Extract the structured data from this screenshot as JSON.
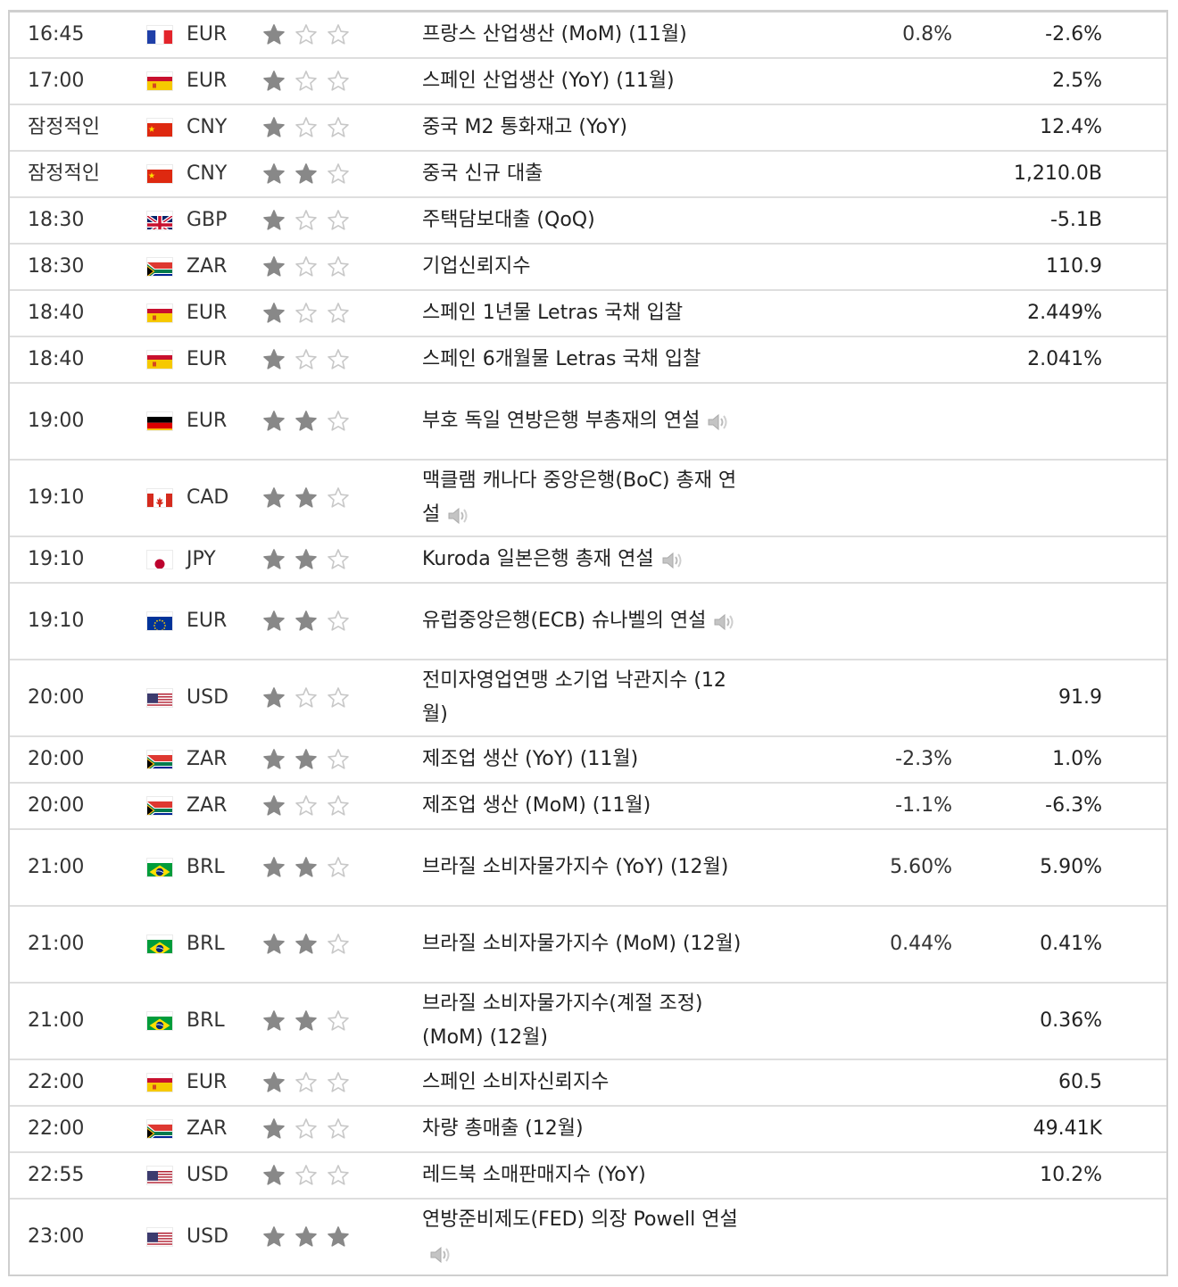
{
  "colors": {
    "star_filled": "#888888",
    "star_empty": "#c8c8c8",
    "border": "#dedede"
  },
  "rows": [
    {
      "time": "16:45",
      "flag": "fr",
      "currency": "EUR",
      "importance": 1,
      "event": "프랑스 산업생산 (MoM) (11월)",
      "speech": false,
      "forecast": "0.8%",
      "previous": "-2.6%"
    },
    {
      "time": "17:00",
      "flag": "es",
      "currency": "EUR",
      "importance": 1,
      "event": "스페인 산업생산 (YoY) (11월)",
      "speech": false,
      "forecast": "",
      "previous": "2.5%"
    },
    {
      "time": "잠정적인",
      "flag": "cn",
      "currency": "CNY",
      "importance": 1,
      "event": "중국 M2 통화재고 (YoY)",
      "speech": false,
      "forecast": "",
      "previous": "12.4%"
    },
    {
      "time": "잠정적인",
      "flag": "cn",
      "currency": "CNY",
      "importance": 2,
      "event": "중국 신규 대출",
      "speech": false,
      "forecast": "",
      "previous": "1,210.0B"
    },
    {
      "time": "18:30",
      "flag": "gb",
      "currency": "GBP",
      "importance": 1,
      "event": "주택담보대출 (QoQ)",
      "speech": false,
      "forecast": "",
      "previous": "-5.1B"
    },
    {
      "time": "18:30",
      "flag": "za",
      "currency": "ZAR",
      "importance": 1,
      "event": "기업신뢰지수",
      "speech": false,
      "forecast": "",
      "previous": "110.9"
    },
    {
      "time": "18:40",
      "flag": "es",
      "currency": "EUR",
      "importance": 1,
      "event": "스페인 1년물 Letras 국채 입찰",
      "speech": false,
      "forecast": "",
      "previous": "2.449%"
    },
    {
      "time": "18:40",
      "flag": "es",
      "currency": "EUR",
      "importance": 1,
      "event": "스페인 6개월물 Letras 국채 입찰",
      "speech": false,
      "forecast": "",
      "previous": "2.041%"
    },
    {
      "time": "19:00",
      "flag": "de",
      "currency": "EUR",
      "importance": 2,
      "event": "부호 독일 연방은행 부총재의 연설",
      "speech": true,
      "forecast": "",
      "previous": ""
    },
    {
      "time": "19:10",
      "flag": "ca",
      "currency": "CAD",
      "importance": 2,
      "event": "맥클램 캐나다 중앙은행(BoC) 총재 연설",
      "speech": true,
      "forecast": "",
      "previous": ""
    },
    {
      "time": "19:10",
      "flag": "jp",
      "currency": "JPY",
      "importance": 2,
      "event": "Kuroda 일본은행 총재 연설",
      "speech": true,
      "forecast": "",
      "previous": ""
    },
    {
      "time": "19:10",
      "flag": "eu",
      "currency": "EUR",
      "importance": 2,
      "event": "유럽중앙은행(ECB) 슈나벨의 연설",
      "speech": true,
      "forecast": "",
      "previous": ""
    },
    {
      "time": "20:00",
      "flag": "us",
      "currency": "USD",
      "importance": 1,
      "event": "전미자영업연맹 소기업 낙관지수 (12월)",
      "speech": false,
      "forecast": "",
      "previous": "91.9"
    },
    {
      "time": "20:00",
      "flag": "za",
      "currency": "ZAR",
      "importance": 2,
      "event": "제조업 생산 (YoY) (11월)",
      "speech": false,
      "forecast": "-2.3%",
      "previous": "1.0%"
    },
    {
      "time": "20:00",
      "flag": "za",
      "currency": "ZAR",
      "importance": 1,
      "event": "제조업 생산 (MoM) (11월)",
      "speech": false,
      "forecast": "-1.1%",
      "previous": "-6.3%"
    },
    {
      "time": "21:00",
      "flag": "br",
      "currency": "BRL",
      "importance": 2,
      "event": "브라질 소비자물가지수 (YoY) (12월)",
      "speech": false,
      "forecast": "5.60%",
      "previous": "5.90%"
    },
    {
      "time": "21:00",
      "flag": "br",
      "currency": "BRL",
      "importance": 2,
      "event": "브라질 소비자물가지수 (MoM) (12월)",
      "speech": false,
      "forecast": "0.44%",
      "previous": "0.41%"
    },
    {
      "time": "21:00",
      "flag": "br",
      "currency": "BRL",
      "importance": 2,
      "event": "브라질 소비자물가지수(계절 조정) (MoM) (12월)",
      "speech": false,
      "forecast": "",
      "previous": "0.36%"
    },
    {
      "time": "22:00",
      "flag": "es",
      "currency": "EUR",
      "importance": 1,
      "event": "스페인 소비자신뢰지수",
      "speech": false,
      "forecast": "",
      "previous": "60.5"
    },
    {
      "time": "22:00",
      "flag": "za",
      "currency": "ZAR",
      "importance": 1,
      "event": "차량 총매출 (12월)",
      "speech": false,
      "forecast": "",
      "previous": "49.41K"
    },
    {
      "time": "22:55",
      "flag": "us",
      "currency": "USD",
      "importance": 1,
      "event": "레드북 소매판매지수 (YoY)",
      "speech": false,
      "forecast": "",
      "previous": "10.2%"
    },
    {
      "time": "23:00",
      "flag": "us",
      "currency": "USD",
      "importance": 3,
      "event": "연방준비제도(FED) 의장 Powell 연설",
      "speech": true,
      "forecast": "",
      "previous": ""
    }
  ]
}
